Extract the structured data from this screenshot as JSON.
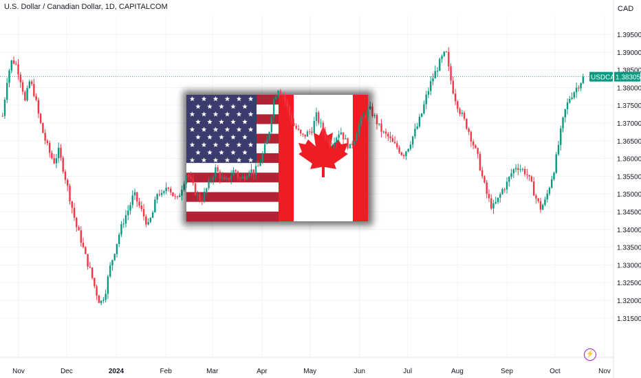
{
  "header": {
    "title": "U.S. Dollar / Canadian Dollar, 1D, CAPITALCOM",
    "currency": "CAD"
  },
  "badges": {
    "symbol": "USDCAD",
    "last_price": "1.38305"
  },
  "colors": {
    "up": "#089981",
    "down": "#f23645",
    "badge": "#089981",
    "alert_icon": "#9c27b0",
    "grid": "#f0f3fa"
  },
  "icons": {
    "alert": "lightning-icon",
    "overlay": "usa-canada-flags"
  },
  "chart_data": {
    "type": "candlestick",
    "title": "U.S. Dollar / Canadian Dollar, 1D, CAPITALCOM",
    "ylim": [
      1.312,
      1.399
    ],
    "y_ticks": [
      "1.31500",
      "1.32000",
      "1.32500",
      "1.33000",
      "1.33500",
      "1.34000",
      "1.34500",
      "1.35000",
      "1.35500",
      "1.36000",
      "1.36500",
      "1.37000",
      "1.37500",
      "1.38000",
      "1.38500",
      "1.39000",
      "1.39500"
    ],
    "x_ticks": [
      {
        "label": "Nov",
        "day": 0
      },
      {
        "label": "Dec",
        "day": 30
      },
      {
        "label": "2024",
        "day": 61,
        "bold": true
      },
      {
        "label": "Feb",
        "day": 92
      },
      {
        "label": "Mar",
        "day": 121
      },
      {
        "label": "Apr",
        "day": 152
      },
      {
        "label": "May",
        "day": 182
      },
      {
        "label": "Jun",
        "day": 213
      },
      {
        "label": "Jul",
        "day": 243
      },
      {
        "label": "Aug",
        "day": 274
      },
      {
        "label": "Sep",
        "day": 305
      },
      {
        "label": "Oct",
        "day": 335
      },
      {
        "label": "Nov",
        "day": 366
      }
    ],
    "last_price": 1.38305,
    "grid": true,
    "anchors": [
      [
        -10,
        1.372
      ],
      [
        -7,
        1.383
      ],
      [
        -4,
        1.388
      ],
      [
        -1,
        1.386
      ],
      [
        2,
        1.381
      ],
      [
        4,
        1.376
      ],
      [
        7,
        1.382
      ],
      [
        10,
        1.378
      ],
      [
        13,
        1.371
      ],
      [
        16,
        1.366
      ],
      [
        19,
        1.362
      ],
      [
        22,
        1.359
      ],
      [
        25,
        1.362
      ],
      [
        28,
        1.357
      ],
      [
        30,
        1.353
      ],
      [
        33,
        1.347
      ],
      [
        36,
        1.341
      ],
      [
        39,
        1.337
      ],
      [
        42,
        1.332
      ],
      [
        45,
        1.328
      ],
      [
        48,
        1.323
      ],
      [
        51,
        1.319
      ],
      [
        54,
        1.322
      ],
      [
        57,
        1.329
      ],
      [
        60,
        1.334
      ],
      [
        63,
        1.339
      ],
      [
        66,
        1.343
      ],
      [
        69,
        1.346
      ],
      [
        72,
        1.35
      ],
      [
        75,
        1.347
      ],
      [
        78,
        1.344
      ],
      [
        81,
        1.341
      ],
      [
        84,
        1.345
      ],
      [
        87,
        1.351
      ],
      [
        90,
        1.349
      ],
      [
        93,
        1.353
      ],
      [
        96,
        1.35
      ],
      [
        99,
        1.348
      ],
      [
        102,
        1.352
      ],
      [
        105,
        1.356
      ],
      [
        108,
        1.353
      ],
      [
        111,
        1.35
      ],
      [
        114,
        1.348
      ],
      [
        117,
        1.351
      ],
      [
        120,
        1.354
      ],
      [
        123,
        1.357
      ],
      [
        126,
        1.355
      ],
      [
        129,
        1.353
      ],
      [
        132,
        1.355
      ],
      [
        135,
        1.357
      ],
      [
        138,
        1.354
      ],
      [
        141,
        1.355
      ],
      [
        144,
        1.357
      ],
      [
        147,
        1.356
      ],
      [
        150,
        1.358
      ],
      [
        153,
        1.362
      ],
      [
        156,
        1.366
      ],
      [
        159,
        1.376
      ],
      [
        162,
        1.38
      ],
      [
        165,
        1.378
      ],
      [
        168,
        1.374
      ],
      [
        171,
        1.37
      ],
      [
        174,
        1.368
      ],
      [
        177,
        1.366
      ],
      [
        180,
        1.367
      ],
      [
        183,
        1.368
      ],
      [
        186,
        1.372
      ],
      [
        189,
        1.369
      ],
      [
        192,
        1.366
      ],
      [
        195,
        1.364
      ],
      [
        198,
        1.366
      ],
      [
        201,
        1.368
      ],
      [
        204,
        1.365
      ],
      [
        207,
        1.363
      ],
      [
        210,
        1.366
      ],
      [
        213,
        1.37
      ],
      [
        216,
        1.372
      ],
      [
        219,
        1.374
      ],
      [
        222,
        1.372
      ],
      [
        225,
        1.369
      ],
      [
        228,
        1.367
      ],
      [
        231,
        1.366
      ],
      [
        234,
        1.364
      ],
      [
        237,
        1.363
      ],
      [
        240,
        1.361
      ],
      [
        243,
        1.363
      ],
      [
        246,
        1.366
      ],
      [
        249,
        1.369
      ],
      [
        252,
        1.373
      ],
      [
        255,
        1.378
      ],
      [
        258,
        1.382
      ],
      [
        261,
        1.385
      ],
      [
        264,
        1.388
      ],
      [
        267,
        1.39
      ],
      [
        269,
        1.384
      ],
      [
        272,
        1.378
      ],
      [
        275,
        1.374
      ],
      [
        278,
        1.371
      ],
      [
        281,
        1.368
      ],
      [
        284,
        1.364
      ],
      [
        287,
        1.36
      ],
      [
        290,
        1.354
      ],
      [
        293,
        1.349
      ],
      [
        296,
        1.346
      ],
      [
        299,
        1.348
      ],
      [
        302,
        1.351
      ],
      [
        305,
        1.353
      ],
      [
        308,
        1.356
      ],
      [
        311,
        1.358
      ],
      [
        314,
        1.357
      ],
      [
        317,
        1.356
      ],
      [
        320,
        1.353
      ],
      [
        323,
        1.349
      ],
      [
        326,
        1.346
      ],
      [
        329,
        1.348
      ],
      [
        332,
        1.353
      ],
      [
        335,
        1.358
      ],
      [
        338,
        1.366
      ],
      [
        341,
        1.373
      ],
      [
        344,
        1.377
      ],
      [
        347,
        1.379
      ],
      [
        350,
        1.381
      ],
      [
        353,
        1.383
      ]
    ]
  }
}
